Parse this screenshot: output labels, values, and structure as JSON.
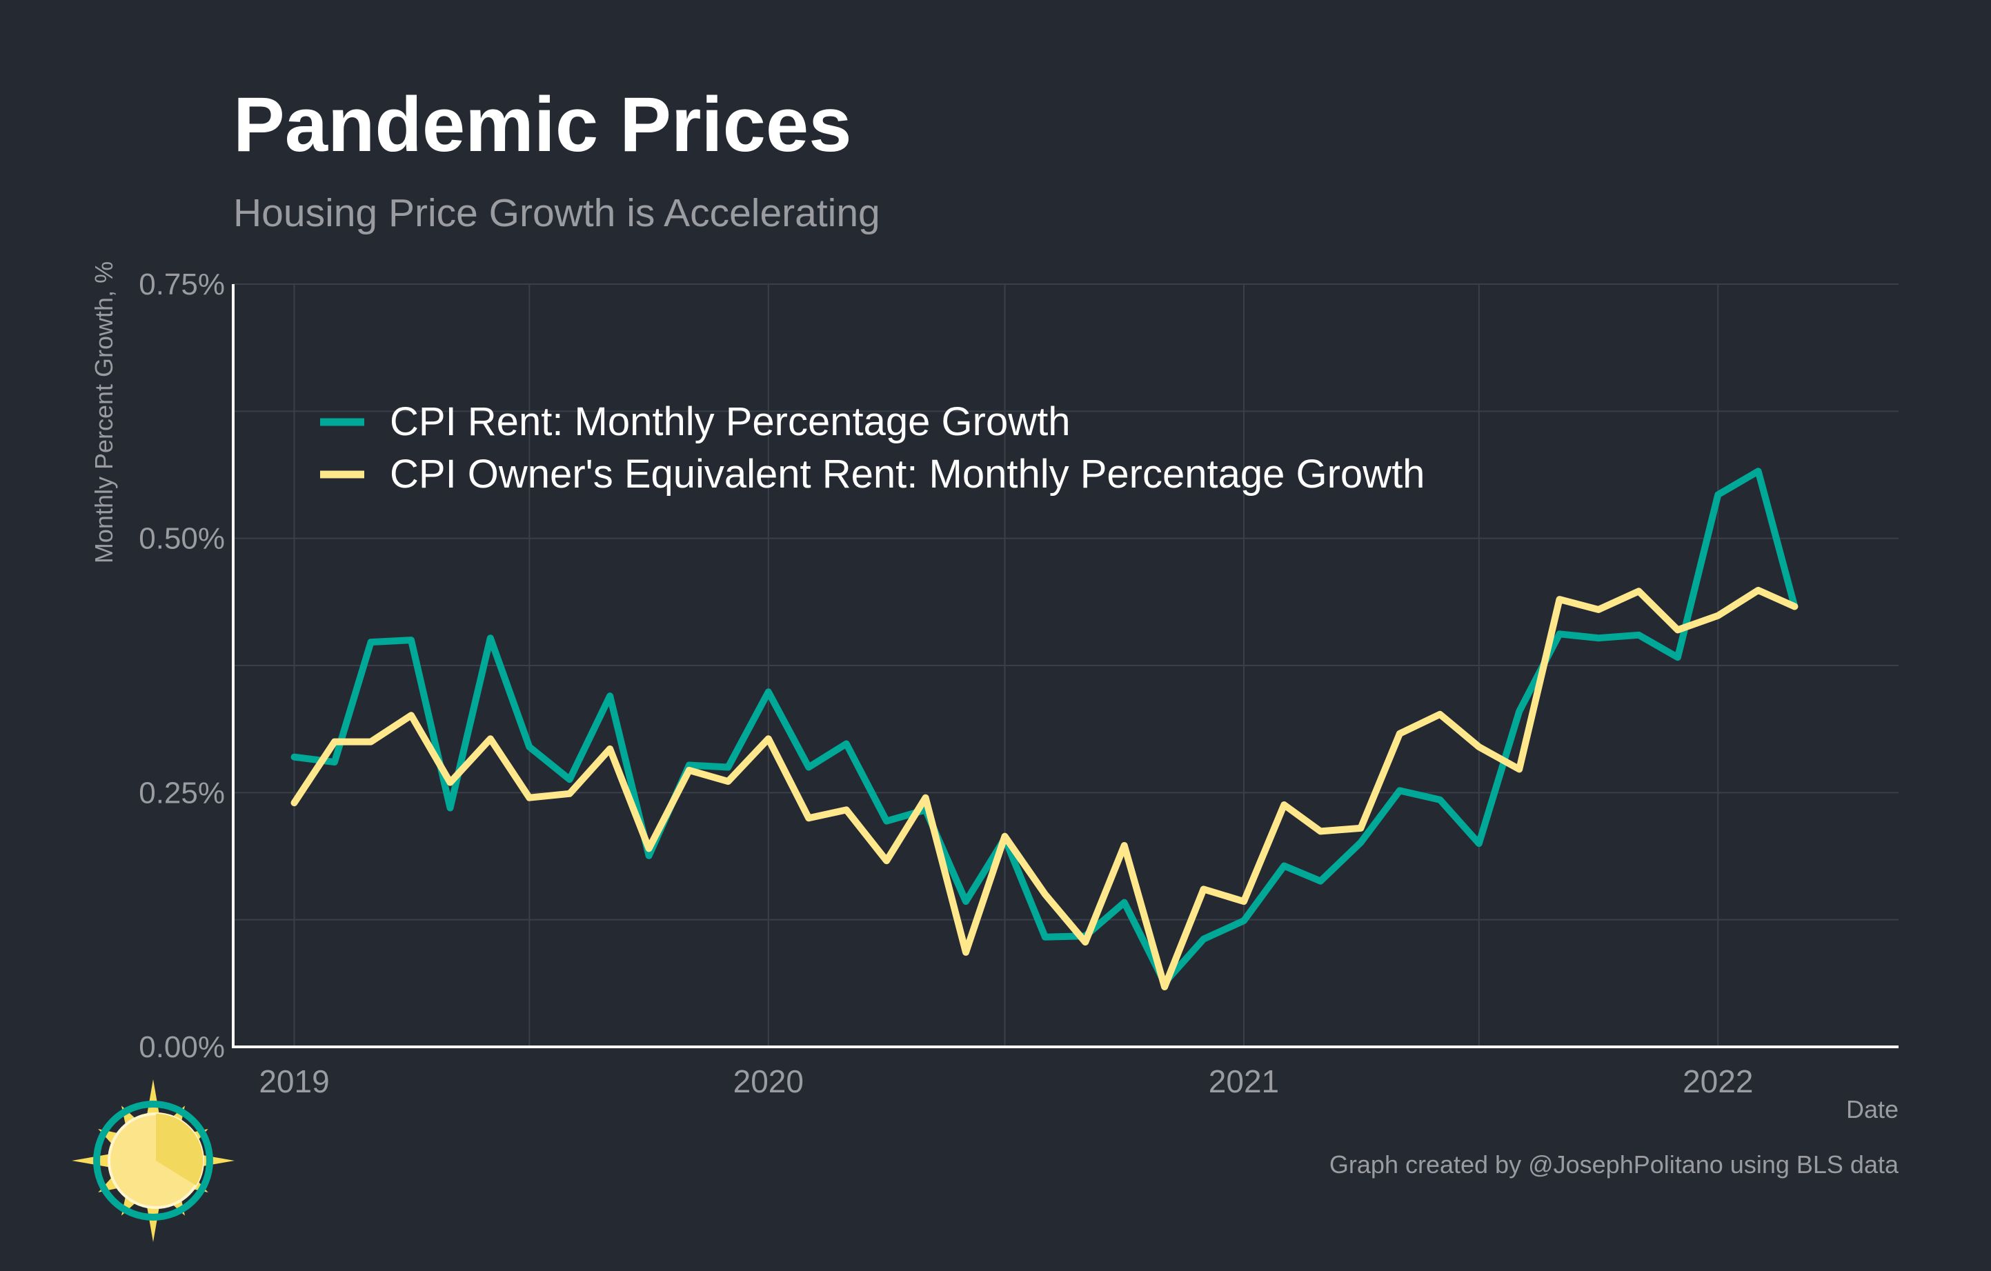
{
  "colors": {
    "background": "#252932",
    "title": "#ffffff",
    "subtitle": "#9a9ca1",
    "axis_text": "#9a9ca1",
    "grid": "#3b3f48",
    "axis_line": "#ffffff",
    "rent": "#00a898",
    "oer": "#ffe88c"
  },
  "footer": {
    "credit": "Graph created by @JosephPolitano using BLS data"
  },
  "logo": {
    "icon": "sun-logo-icon"
  },
  "chart_data": {
    "type": "line",
    "title": "Pandemic Prices",
    "subtitle": "Housing Price Growth is Accelerating",
    "xlabel": "Date",
    "ylabel": "Monthly Percent Growth, %",
    "xlim": [
      "2018-11-15",
      "2022-05-20"
    ],
    "ylim": [
      0,
      0.75
    ],
    "x_ticks": [
      {
        "date": "2019-01-01",
        "label": "2019"
      },
      {
        "date": "2020-01-01",
        "label": "2020"
      },
      {
        "date": "2021-01-01",
        "label": "2021"
      },
      {
        "date": "2022-01-01",
        "label": "2022"
      }
    ],
    "y_ticks": [
      {
        "value": 0,
        "label": "0.00%"
      },
      {
        "value": 0.25,
        "label": "0.25%"
      },
      {
        "value": 0.5,
        "label": "0.50%"
      },
      {
        "value": 0.75,
        "label": "0.75%"
      }
    ],
    "grid": true,
    "legend_position": "top-left",
    "x": [
      "2019-01-01",
      "2019-02-01",
      "2019-03-01",
      "2019-04-01",
      "2019-05-01",
      "2019-06-01",
      "2019-07-01",
      "2019-08-01",
      "2019-09-01",
      "2019-10-01",
      "2019-11-01",
      "2019-12-01",
      "2020-01-01",
      "2020-02-01",
      "2020-03-01",
      "2020-04-01",
      "2020-05-01",
      "2020-06-01",
      "2020-07-01",
      "2020-08-01",
      "2020-09-01",
      "2020-10-01",
      "2020-11-01",
      "2020-12-01",
      "2021-01-01",
      "2021-02-01",
      "2021-03-01",
      "2021-04-01",
      "2021-05-01",
      "2021-06-01",
      "2021-07-01",
      "2021-08-01",
      "2021-09-01",
      "2021-10-01",
      "2021-11-01",
      "2021-12-01",
      "2022-01-01",
      "2022-02-01",
      "2022-03-01"
    ],
    "series": [
      {
        "name": "CPI Rent: Monthly Percentage Growth",
        "color": "#00a898",
        "values": [
          0.285,
          0.28,
          0.398,
          0.4,
          0.235,
          0.402,
          0.295,
          0.263,
          0.345,
          0.188,
          0.277,
          0.275,
          0.349,
          0.275,
          0.298,
          0.222,
          0.233,
          0.143,
          0.205,
          0.108,
          0.109,
          0.142,
          0.063,
          0.106,
          0.124,
          0.178,
          0.163,
          0.201,
          0.252,
          0.243,
          0.2,
          0.33,
          0.406,
          0.402,
          0.405,
          0.383,
          0.543,
          0.566,
          0.433
        ]
      },
      {
        "name": "CPI Owner's Equivalent Rent: Monthly Percentage Growth",
        "color": "#ffe88c",
        "values": [
          0.24,
          0.3,
          0.3,
          0.326,
          0.26,
          0.303,
          0.245,
          0.249,
          0.293,
          0.195,
          0.272,
          0.261,
          0.303,
          0.225,
          0.233,
          0.183,
          0.245,
          0.093,
          0.207,
          0.15,
          0.103,
          0.198,
          0.059,
          0.155,
          0.143,
          0.238,
          0.212,
          0.215,
          0.308,
          0.327,
          0.295,
          0.273,
          0.44,
          0.43,
          0.448,
          0.41,
          0.424,
          0.449,
          0.433
        ]
      }
    ]
  }
}
